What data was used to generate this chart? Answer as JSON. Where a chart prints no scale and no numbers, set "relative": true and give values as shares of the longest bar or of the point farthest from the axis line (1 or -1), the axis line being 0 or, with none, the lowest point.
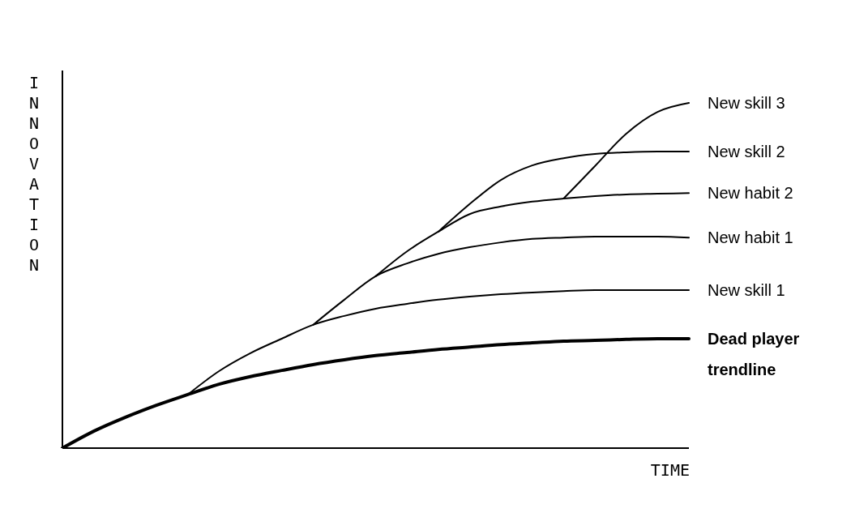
{
  "chart_data": {
    "type": "line",
    "relative": true,
    "xlabel": "TIME",
    "ylabel": "INNOVATION",
    "grid": false,
    "legend": false,
    "marker": "none",
    "line_style": "solid",
    "categories": [
      null,
      null,
      null,
      null,
      null,
      null,
      null,
      null,
      null,
      null,
      null,
      null,
      null,
      null,
      null,
      null,
      null,
      null,
      null,
      null,
      null
    ],
    "series": [
      {
        "name": "Dead player trendline",
        "color": "#000000",
        "values": [
          0,
          0.049,
          0.089,
          0.124,
          0.155,
          0.185,
          0.207,
          0.225,
          0.242,
          0.256,
          0.268,
          0.277,
          0.286,
          0.293,
          0.3,
          0.305,
          0.31,
          0.312,
          0.315,
          0.317,
          0.317
        ]
      },
      {
        "name": "New skill 1",
        "color": "#000000",
        "values": [
          null,
          null,
          null,
          null,
          0.155,
          0.223,
          0.275,
          0.317,
          0.357,
          0.383,
          0.404,
          0.418,
          0.43,
          0.439,
          0.446,
          0.451,
          0.455,
          0.458,
          0.458,
          0.458,
          0.458
        ]
      },
      {
        "name": "New habit 1",
        "color": "#000000",
        "values": [
          null,
          null,
          null,
          null,
          null,
          null,
          null,
          null,
          0.357,
          0.43,
          0.498,
          0.535,
          0.563,
          0.582,
          0.596,
          0.606,
          0.61,
          0.613,
          0.613,
          0.613,
          0.61
        ]
      },
      {
        "name": "New habit 2",
        "color": "#000000",
        "values": [
          null,
          null,
          null,
          null,
          null,
          null,
          null,
          null,
          null,
          null,
          0.498,
          0.57,
          0.627,
          0.678,
          0.7,
          0.714,
          0.723,
          0.73,
          0.735,
          0.737,
          0.739
        ]
      },
      {
        "name": "New skill 2",
        "color": "#000000",
        "values": [
          null,
          null,
          null,
          null,
          null,
          null,
          null,
          null,
          null,
          null,
          null,
          null,
          0.627,
          0.707,
          0.777,
          0.819,
          0.84,
          0.852,
          0.857,
          0.859,
          0.859
        ]
      },
      {
        "name": "New skill 3",
        "color": "#000000",
        "values": [
          null,
          null,
          null,
          null,
          null,
          null,
          null,
          null,
          null,
          null,
          null,
          null,
          null,
          null,
          null,
          null,
          0.723,
          0.817,
          0.911,
          0.974,
          1
        ]
      }
    ]
  }
}
